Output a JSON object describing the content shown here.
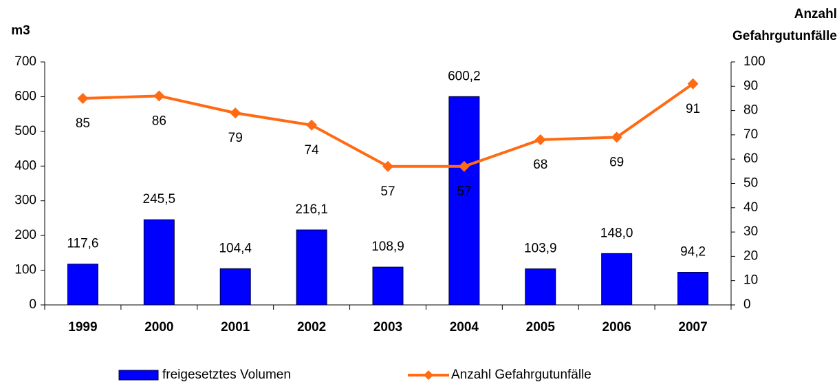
{
  "chart_data": {
    "type": "bar",
    "y_label": "m3",
    "y2_label": "Anzahl Gefahrgutunfälle",
    "categories": [
      "1999",
      "2000",
      "2001",
      "2002",
      "2003",
      "2004",
      "2005",
      "2006",
      "2007"
    ],
    "series": [
      {
        "name": "freigesetztes Volumen",
        "type": "bar",
        "color": "#0000ff",
        "values": [
          117.6,
          245.5,
          104.4,
          216.1,
          108.9,
          600.2,
          103.9,
          148.0,
          94.2
        ],
        "value_labels": [
          "117,6",
          "245,5",
          "104,4",
          "216,1",
          "108,9",
          "600,2",
          "103,9",
          "148,0",
          "94,2"
        ]
      },
      {
        "name": "Anzahl Gefahrgutunfälle",
        "type": "line",
        "axis": "y2",
        "color": "#ff6a13",
        "values": [
          85,
          86,
          79,
          74,
          57,
          57,
          68,
          69,
          91
        ]
      }
    ],
    "ylim": [
      0,
      700
    ],
    "yticks": [
      0,
      100,
      200,
      300,
      400,
      500,
      600,
      700
    ],
    "y2lim": [
      0,
      100
    ],
    "y2ticks": [
      0,
      10,
      20,
      30,
      40,
      50,
      60,
      70,
      80,
      90,
      100
    ],
    "legend": "bottom"
  }
}
